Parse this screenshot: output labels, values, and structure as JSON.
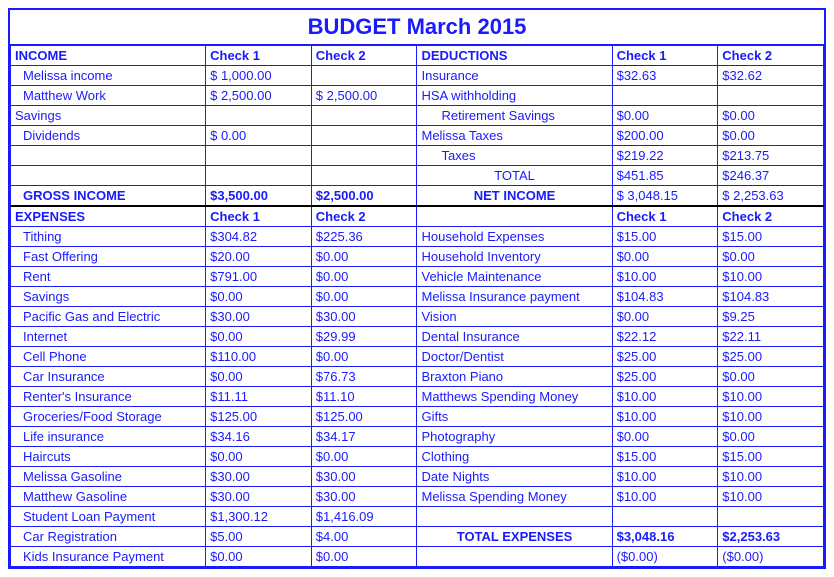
{
  "title": "BUDGET March 2015",
  "headers": {
    "income": "INCOME",
    "check1": "Check 1",
    "check2": "Check  2",
    "deductions": "DEDUCTIONS",
    "dcheck1": "Check  1",
    "dcheck2": "Check  2",
    "expenses": "EXPENSES",
    "echeck1": "Check  1",
    "echeck2": "Check  2",
    "rcheck1": "Check 1",
    "rcheck2": "Check  2"
  },
  "income": [
    {
      "label": "Melissa income",
      "c1": "$        1,000.00",
      "c2": "",
      "indent": 1
    },
    {
      "label": "Matthew Work",
      "c1": "$        2,500.00",
      "c2": "$        2,500.00",
      "indent": 1
    }
  ],
  "savingsLabel": "Savings",
  "dividends": {
    "label": "Dividends",
    "c1": "$               0.00",
    "c2": ""
  },
  "gross": {
    "label": "GROSS INCOME",
    "c1": "$3,500.00",
    "c2": "$2,500.00"
  },
  "deductions": [
    {
      "label": "Insurance",
      "c1": "$32.63",
      "c2": "$32.62",
      "indent": 0
    },
    {
      "label": "HSA withholding",
      "c1": "",
      "c2": "",
      "indent": 0
    },
    {
      "label": "Retirement Savings",
      "c1": "$0.00",
      "c2": "$0.00",
      "indent": 2
    },
    {
      "label": "Melissa Taxes",
      "c1": "$200.00",
      "c2": "$0.00",
      "indent": 0
    },
    {
      "label": "Taxes",
      "c1": "$219.22",
      "c2": "$213.75",
      "indent": 2
    },
    {
      "label": "TOTAL",
      "c1": "$451.85",
      "c2": "$246.37",
      "indent": 2,
      "center": true
    }
  ],
  "net": {
    "label": "NET INCOME",
    "c1": "$      3,048.15",
    "c2": "$      2,253.63"
  },
  "expLeft": [
    {
      "label": "Tithing",
      "c1": "$304.82",
      "c2": "$225.36"
    },
    {
      "label": "Fast Offering",
      "c1": "$20.00",
      "c2": "$0.00"
    },
    {
      "label": "Rent",
      "c1": "$791.00",
      "c2": "$0.00"
    },
    {
      "label": "Savings",
      "c1": "$0.00",
      "c2": "$0.00"
    },
    {
      "label": "Pacific Gas and Electric",
      "c1": "$30.00",
      "c2": "$30.00"
    },
    {
      "label": "Internet",
      "c1": "$0.00",
      "c2": "$29.99"
    },
    {
      "label": "Cell Phone",
      "c1": "$110.00",
      "c2": "$0.00"
    },
    {
      "label": "Car Insurance",
      "c1": "$0.00",
      "c2": "$76.73"
    },
    {
      "label": "Renter's Insurance",
      "c1": "$11.11",
      "c2": "$11.10"
    },
    {
      "label": "Groceries/Food Storage",
      "c1": "$125.00",
      "c2": "$125.00"
    },
    {
      "label": "Life insurance",
      "c1": "$34.16",
      "c2": "$34.17"
    },
    {
      "label": "Haircuts",
      "c1": "$0.00",
      "c2": "$0.00"
    },
    {
      "label": "Melissa Gasoline",
      "c1": "$30.00",
      "c2": "$30.00"
    },
    {
      "label": "Matthew Gasoline",
      "c1": "$30.00",
      "c2": "$30.00"
    },
    {
      "label": "Student Loan Payment",
      "c1": "$1,300.12",
      "c2": "$1,416.09"
    },
    {
      "label": "Car Registration",
      "c1": "$5.00",
      "c2": "$4.00"
    },
    {
      "label": "Kids Insurance Payment",
      "c1": "$0.00",
      "c2": "$0.00"
    }
  ],
  "expRight": [
    {
      "label": "Household Expenses",
      "c1": "$15.00",
      "c2": "$15.00"
    },
    {
      "label": "Household Inventory",
      "c1": "$0.00",
      "c2": "$0.00"
    },
    {
      "label": "Vehicle Maintenance",
      "c1": "$10.00",
      "c2": "$10.00"
    },
    {
      "label": "Melissa Insurance payment",
      "c1": "$104.83",
      "c2": "$104.83"
    },
    {
      "label": "Vision",
      "c1": "$0.00",
      "c2": "$9.25"
    },
    {
      "label": "Dental Insurance",
      "c1": "$22.12",
      "c2": "$22.11"
    },
    {
      "label": "Doctor/Dentist",
      "c1": "$25.00",
      "c2": "$25.00"
    },
    {
      "label": "Braxton Piano",
      "c1": "$25.00",
      "c2": "$0.00"
    },
    {
      "label": "Matthews Spending Money",
      "c1": "$10.00",
      "c2": "$10.00"
    },
    {
      "label": "Gifts",
      "c1": "$10.00",
      "c2": "$10.00"
    },
    {
      "label": "Photography",
      "c1": "$0.00",
      "c2": "$0.00"
    },
    {
      "label": "Clothing",
      "c1": "$15.00",
      "c2": "$15.00"
    },
    {
      "label": "Date Nights",
      "c1": "$10.00",
      "c2": "$10.00"
    },
    {
      "label": "Melissa Spending Money",
      "c1": "$10.00",
      "c2": "$10.00"
    }
  ],
  "totalExp": {
    "label": "TOTAL EXPENSES",
    "c1": "$3,048.16",
    "c2": "$2,253.63"
  },
  "balance": {
    "c1": "($0.00)",
    "c2": "($0.00)"
  }
}
